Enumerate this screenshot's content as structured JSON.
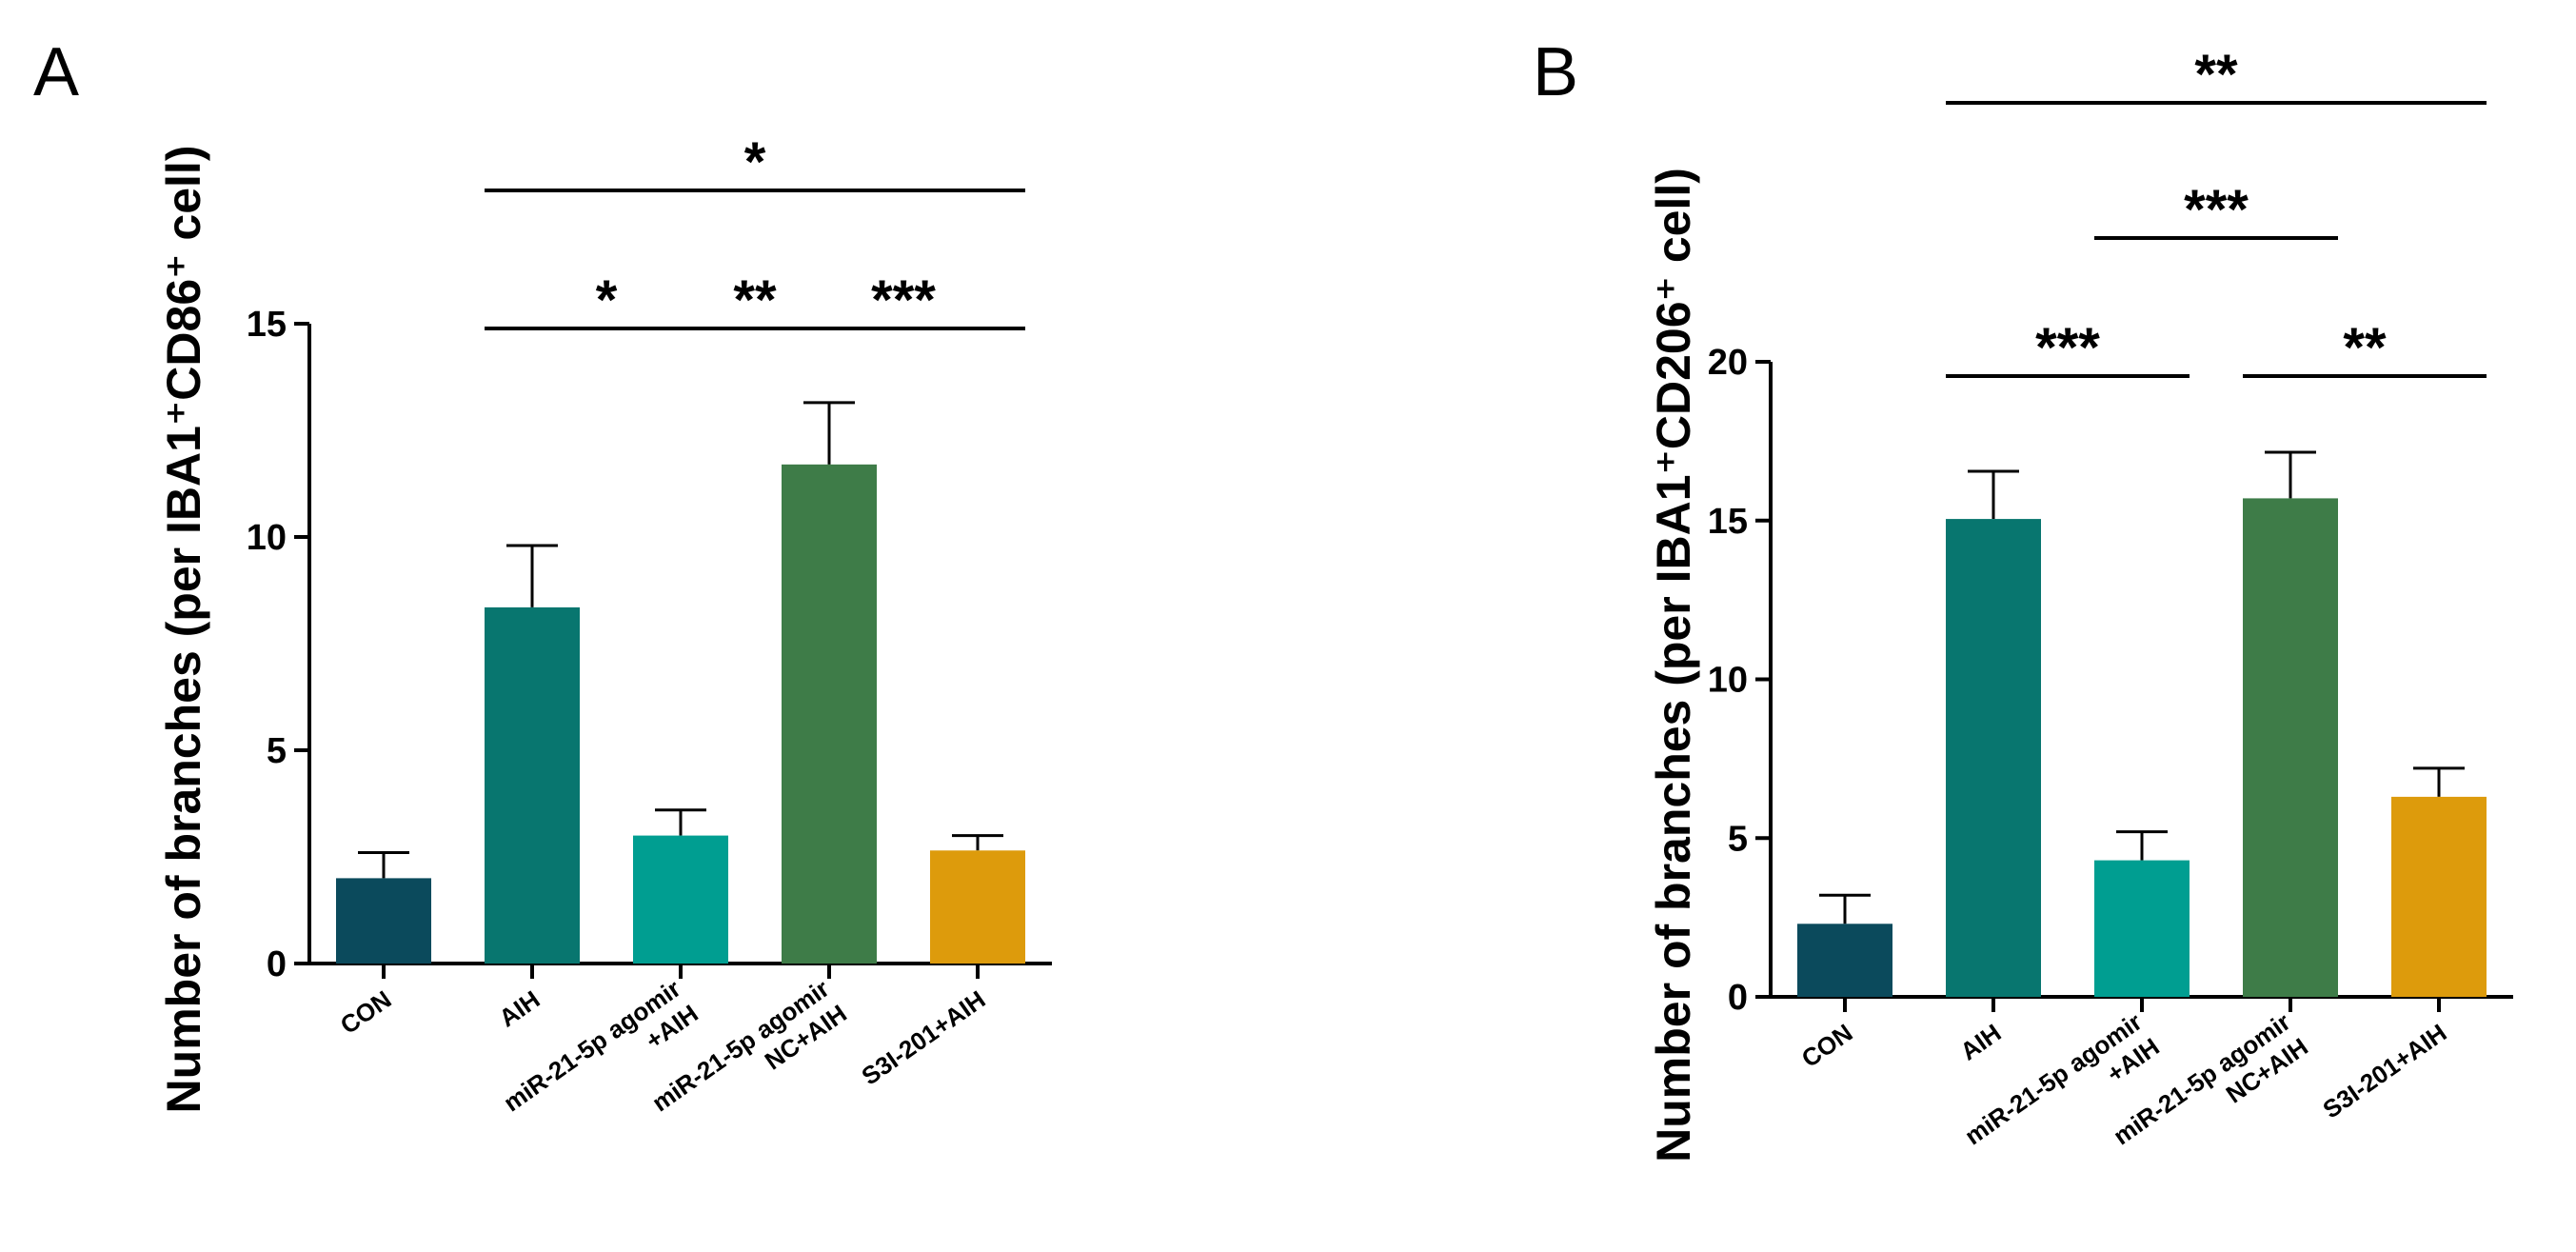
{
  "chart_data": [
    {
      "type": "bar",
      "panel_label": "A",
      "ylabel": "Number of branches (per IBA1⁺CD86⁺ cell)",
      "xlabel": "",
      "ylim": [
        0,
        15
      ],
      "yticks": [
        0,
        5,
        10,
        15
      ],
      "categories": [
        {
          "lines": [
            "CON"
          ]
        },
        {
          "lines": [
            "AIH"
          ]
        },
        {
          "lines": [
            "miR-21-5p agomir",
            "+AIH"
          ]
        },
        {
          "lines": [
            "miR-21-5p agomir",
            "NC+AIH"
          ]
        },
        {
          "lines": [
            "S3I-201+AIH"
          ]
        }
      ],
      "values": [
        2.0,
        8.35,
        3.0,
        11.7,
        2.65
      ],
      "errors": [
        0.6,
        1.45,
        0.6,
        1.45,
        0.35
      ],
      "colors": [
        "#0b4a5c",
        "#08766f",
        "#009e91",
        "#3e7c48",
        "#dd9b0c"
      ],
      "significance": [
        {
          "from": 1,
          "to": 2,
          "label": "*",
          "level": 1
        },
        {
          "from": 2,
          "to": 3,
          "label": "**",
          "level": 1
        },
        {
          "from": 3,
          "to": 4,
          "label": "***",
          "level": 1
        },
        {
          "from": 1,
          "to": 4,
          "label": "*",
          "level": 2
        }
      ]
    },
    {
      "type": "bar",
      "panel_label": "B",
      "ylabel": "Number of branches (per IBA1⁺CD206⁺ cell)",
      "xlabel": "",
      "ylim": [
        0,
        20
      ],
      "yticks": [
        0,
        5,
        10,
        15,
        20
      ],
      "categories": [
        {
          "lines": [
            "CON"
          ]
        },
        {
          "lines": [
            "AIH"
          ]
        },
        {
          "lines": [
            "miR-21-5p agomir",
            "+AIH"
          ]
        },
        {
          "lines": [
            "miR-21-5p agomir",
            "NC+AIH"
          ]
        },
        {
          "lines": [
            "S3I-201+AIH"
          ]
        }
      ],
      "values": [
        2.3,
        15.05,
        4.3,
        15.7,
        6.3
      ],
      "errors": [
        0.9,
        1.5,
        0.9,
        1.45,
        0.9
      ],
      "colors": [
        "#0b4a5c",
        "#08766f",
        "#009e91",
        "#3e7c48",
        "#dd9b0c"
      ],
      "significance": [
        {
          "from": 1,
          "to": 2,
          "label": "***",
          "level": 1
        },
        {
          "from": 3,
          "to": 4,
          "label": "**",
          "level": 1
        },
        {
          "from": 2,
          "to": 3,
          "label": "***",
          "level": 2
        },
        {
          "from": 1,
          "to": 4,
          "label": "**",
          "level": 3
        }
      ]
    }
  ]
}
